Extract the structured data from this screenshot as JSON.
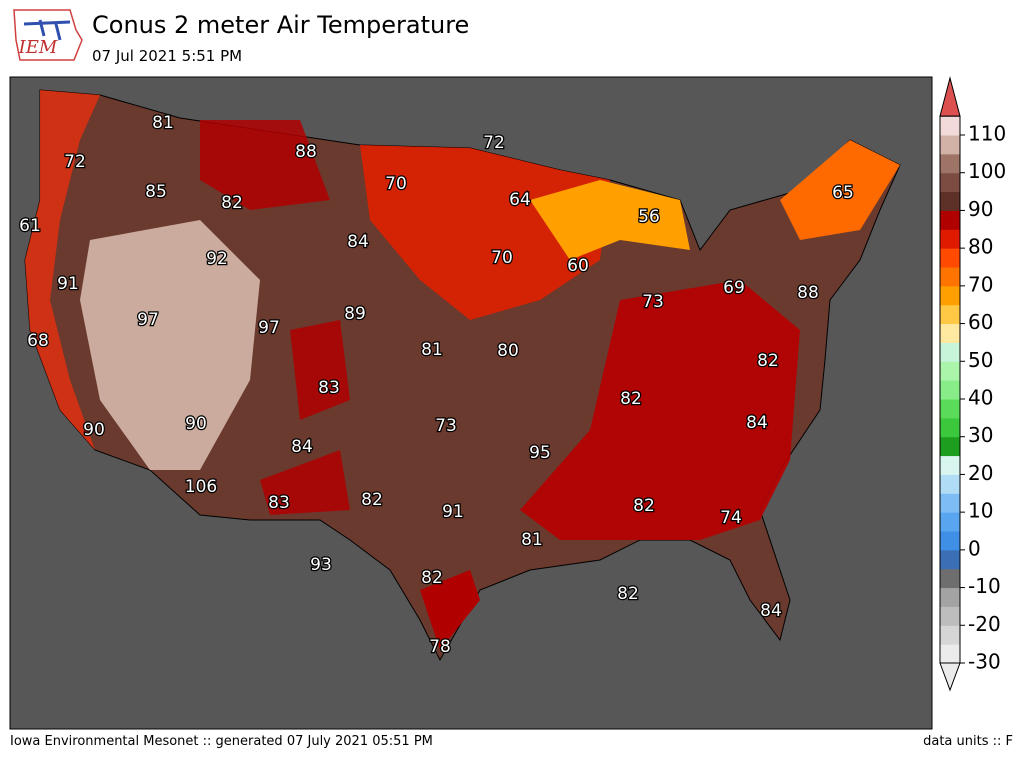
{
  "header": {
    "logo": "IEM",
    "title": "Conus 2 meter Air Temperature",
    "subtitle": "07 Jul 2021 5:51 PM"
  },
  "map": {
    "labels": [
      81,
      88,
      72,
      72,
      70,
      85,
      82,
      64,
      65,
      56,
      61,
      84,
      92,
      70,
      60,
      91,
      69,
      88,
      73,
      97,
      97,
      89,
      68,
      81,
      80,
      82,
      83,
      82,
      73,
      84,
      90,
      90,
      84,
      95,
      106,
      83,
      82,
      91,
      82,
      74,
      81,
      93,
      82,
      82,
      84,
      78
    ]
  },
  "colorbar": {
    "ticks": [
      110,
      100,
      90,
      80,
      70,
      60,
      50,
      40,
      30,
      20,
      10,
      0,
      -10,
      -20,
      -30
    ],
    "colors": [
      "#ebebeb",
      "#d6d6d6",
      "#bdbdbd",
      "#a3a3a3",
      "#6e6e6e",
      "#3a6fb5",
      "#3f8fe6",
      "#5aa5f0",
      "#7ebcf5",
      "#b0dcf5",
      "#d8f5f0",
      "#1e9e1e",
      "#3cc83c",
      "#5adc5a",
      "#88ec88",
      "#aaf5aa",
      "#c6f5da",
      "#ffe9a0",
      "#ffc845",
      "#ffa000",
      "#ff7400",
      "#ff4a00",
      "#e01a00",
      "#b00000",
      "#5e3128",
      "#7c4c42",
      "#9e7466",
      "#d2b2a6",
      "#f2dada",
      "#f5b5b5",
      "#ee8888",
      "#dd5050"
    ]
  },
  "footer": {
    "left": "Iowa Environmental Mesonet :: generated 07 July 2021 05:51 PM",
    "right": "data units :: F"
  }
}
